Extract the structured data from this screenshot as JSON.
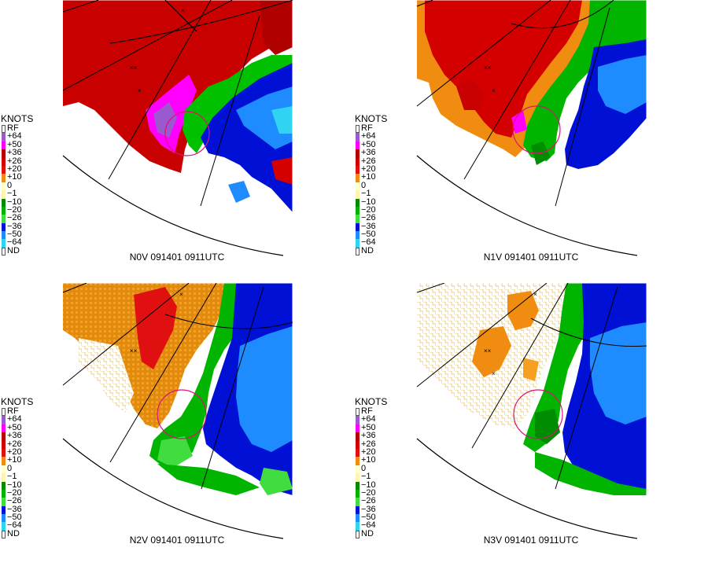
{
  "legend": {
    "title": "KNOTS",
    "items": [
      {
        "label": "RF",
        "color": "#ffffff",
        "outlined": true
      },
      {
        "label": "+64",
        "color": "#9b59d0"
      },
      {
        "label": "+50",
        "color": "#ff00ff"
      },
      {
        "label": "+36",
        "color": "#b40000"
      },
      {
        "label": "+26",
        "color": "#d40000"
      },
      {
        "label": "+20",
        "color": "#e01010"
      },
      {
        "label": "+10",
        "color": "#f08c10"
      },
      {
        "label": "0",
        "color": "#ffffcc"
      },
      {
        "label": "−1",
        "color": "#fff5b0"
      },
      {
        "label": "−10",
        "color": "#008c00"
      },
      {
        "label": "−20",
        "color": "#00b400"
      },
      {
        "label": "−26",
        "color": "#40dc40"
      },
      {
        "label": "−36",
        "color": "#0010d4"
      },
      {
        "label": "−50",
        "color": "#1e8cff"
      },
      {
        "label": "−64",
        "color": "#30d4f0"
      },
      {
        "label": "ND",
        "color": "#ffffff",
        "outlined": true
      }
    ]
  },
  "panels": [
    {
      "caption": "N0V 091401 0911UTC"
    },
    {
      "caption": "N1V 091401 0911UTC"
    },
    {
      "caption": "N2V 091401 0911UTC"
    },
    {
      "caption": "N3V 091401 0911UTC"
    }
  ]
}
